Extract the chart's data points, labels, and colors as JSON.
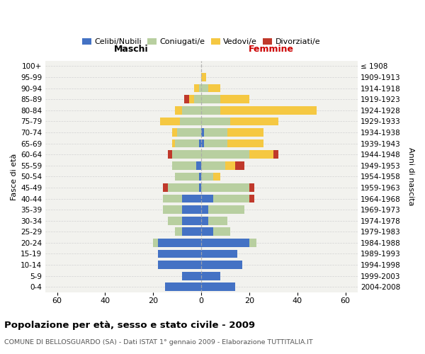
{
  "age_groups": [
    "0-4",
    "5-9",
    "10-14",
    "15-19",
    "20-24",
    "25-29",
    "30-34",
    "35-39",
    "40-44",
    "45-49",
    "50-54",
    "55-59",
    "60-64",
    "65-69",
    "70-74",
    "75-79",
    "80-84",
    "85-89",
    "90-94",
    "95-99",
    "100+"
  ],
  "birth_years": [
    "2004-2008",
    "1999-2003",
    "1994-1998",
    "1989-1993",
    "1984-1988",
    "1979-1983",
    "1974-1978",
    "1969-1973",
    "1964-1968",
    "1959-1963",
    "1954-1958",
    "1949-1953",
    "1944-1948",
    "1939-1943",
    "1934-1938",
    "1929-1933",
    "1924-1928",
    "1919-1923",
    "1914-1918",
    "1909-1913",
    "≤ 1908"
  ],
  "male_celibe": [
    15,
    8,
    18,
    18,
    18,
    8,
    8,
    8,
    8,
    1,
    1,
    2,
    0,
    1,
    0,
    0,
    0,
    0,
    0,
    0,
    0
  ],
  "male_coniugato": [
    0,
    0,
    0,
    0,
    2,
    3,
    6,
    8,
    8,
    13,
    10,
    10,
    12,
    10,
    10,
    9,
    8,
    3,
    1,
    0,
    0
  ],
  "male_vedovo": [
    0,
    0,
    0,
    0,
    0,
    0,
    0,
    0,
    0,
    0,
    0,
    0,
    0,
    1,
    2,
    8,
    3,
    2,
    2,
    0,
    0
  ],
  "male_divorziato": [
    0,
    0,
    0,
    0,
    0,
    0,
    0,
    0,
    0,
    2,
    0,
    0,
    2,
    0,
    0,
    0,
    0,
    2,
    0,
    0,
    0
  ],
  "fem_nubile": [
    14,
    8,
    17,
    15,
    20,
    5,
    3,
    3,
    5,
    0,
    0,
    0,
    0,
    1,
    1,
    0,
    0,
    0,
    0,
    0,
    0
  ],
  "fem_coniugata": [
    0,
    0,
    0,
    0,
    3,
    7,
    8,
    15,
    15,
    20,
    5,
    10,
    20,
    10,
    10,
    12,
    8,
    8,
    3,
    0,
    0
  ],
  "fem_vedova": [
    0,
    0,
    0,
    0,
    0,
    0,
    0,
    0,
    0,
    0,
    3,
    4,
    10,
    15,
    15,
    20,
    40,
    12,
    5,
    2,
    0
  ],
  "fem_divorziata": [
    0,
    0,
    0,
    0,
    0,
    0,
    0,
    0,
    2,
    2,
    0,
    4,
    2,
    0,
    0,
    0,
    0,
    0,
    0,
    0,
    0
  ],
  "color_celibe": "#4472c4",
  "color_coniugato": "#b8cfa0",
  "color_vedovo": "#f5c842",
  "color_divorziato": "#c0392b",
  "xlim": 65,
  "title": "Popolazione per età, sesso e stato civile - 2009",
  "subtitle": "COMUNE DI BELLOSGUARDO (SA) - Dati ISTAT 1° gennaio 2009 - Elaborazione TUTTITALIA.IT",
  "xlabel_left": "Maschi",
  "xlabel_right": "Femmine",
  "ylabel_left": "Fasce di età",
  "ylabel_right": "Anni di nascita",
  "legend_labels": [
    "Celibi/Nubili",
    "Coniugati/e",
    "Vedovi/e",
    "Divorziati/e"
  ]
}
